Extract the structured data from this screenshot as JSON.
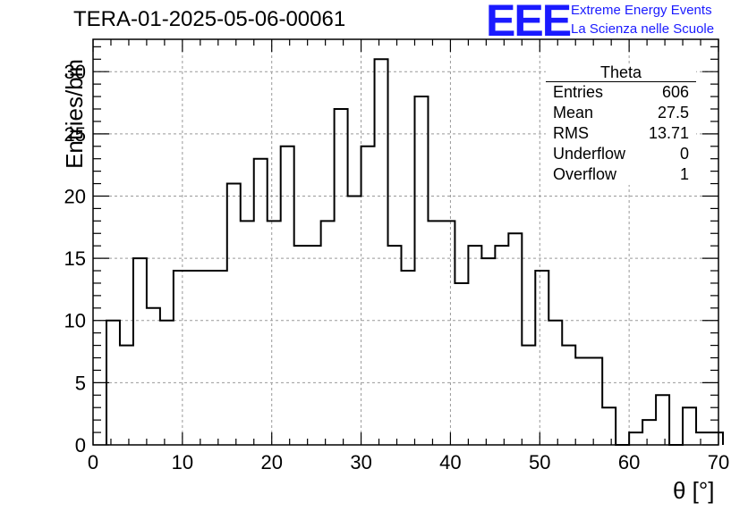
{
  "header": {
    "title": "TERA-01-2025-05-06-00061",
    "logo_text": "EEE",
    "org_line1": "Extreme Energy Events",
    "org_line2": "La Scienza nelle Scuole"
  },
  "stats_box": {
    "title": "Theta",
    "rows": [
      {
        "label": "Entries",
        "value": "606"
      },
      {
        "label": "Mean",
        "value": "27.5"
      },
      {
        "label": "RMS",
        "value": "13.71"
      },
      {
        "label": "Underflow",
        "value": "0"
      },
      {
        "label": "Overflow",
        "value": "1"
      }
    ]
  },
  "chart_data": {
    "type": "histogram",
    "xlabel": "θ [°]",
    "ylabel": "Entries/bin",
    "xlim": [
      0,
      70
    ],
    "ylim": [
      0,
      32.6
    ],
    "xticks": [
      0,
      10,
      20,
      30,
      40,
      50,
      60,
      70
    ],
    "yticks": [
      0,
      5,
      10,
      15,
      20,
      25,
      30
    ],
    "grid": true,
    "bin_width": 1.5,
    "bin_start": 1.5,
    "values": [
      10,
      8,
      15,
      11,
      10,
      14,
      14,
      14,
      14,
      21,
      18,
      23,
      18,
      24,
      16,
      16,
      18,
      27,
      20,
      24,
      31,
      16,
      14,
      28,
      18,
      18,
      13,
      16,
      15,
      16,
      17,
      8,
      14,
      10,
      8,
      7,
      7,
      3,
      0,
      1,
      2,
      4,
      0,
      3,
      1,
      1
    ],
    "colors": {
      "line": "#000000",
      "grid": "#999999",
      "logo": "#1a1aff"
    }
  }
}
